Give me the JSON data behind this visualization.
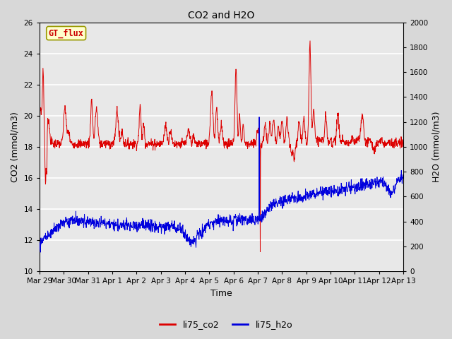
{
  "title": "CO2 and H2O",
  "xlabel": "Time",
  "ylabel_left": "CO2 (mmol/m3)",
  "ylabel_right": "H2O (mmol/m3)",
  "annotation_text": "GT_flux",
  "annotation_bg": "#ffffcc",
  "annotation_border": "#999900",
  "annotation_text_color": "#cc0000",
  "left_ylim": [
    10,
    26
  ],
  "right_ylim": [
    0,
    2000
  ],
  "left_yticks": [
    10,
    12,
    14,
    16,
    18,
    20,
    22,
    24,
    26
  ],
  "right_yticks": [
    0,
    200,
    400,
    600,
    800,
    1000,
    1200,
    1400,
    1600,
    1800,
    2000
  ],
  "bg_color": "#d8d8d8",
  "plot_bg_color": "#e8e8e8",
  "grid_color": "white",
  "co2_color": "#dd0000",
  "h2o_color": "#0000dd",
  "legend_co2": "li75_co2",
  "legend_h2o": "li75_h2o",
  "xtick_labels": [
    "Mar 29",
    "Mar 30",
    "Mar 31",
    "Apr 1",
    "Apr 2",
    "Apr 3",
    "Apr 4",
    "Apr 5",
    "Apr 6",
    "Apr 7",
    "Apr 8",
    "Apr 9",
    "Apr 10",
    "Apr 11",
    "Apr 12",
    "Apr 13"
  ],
  "num_days": 15
}
